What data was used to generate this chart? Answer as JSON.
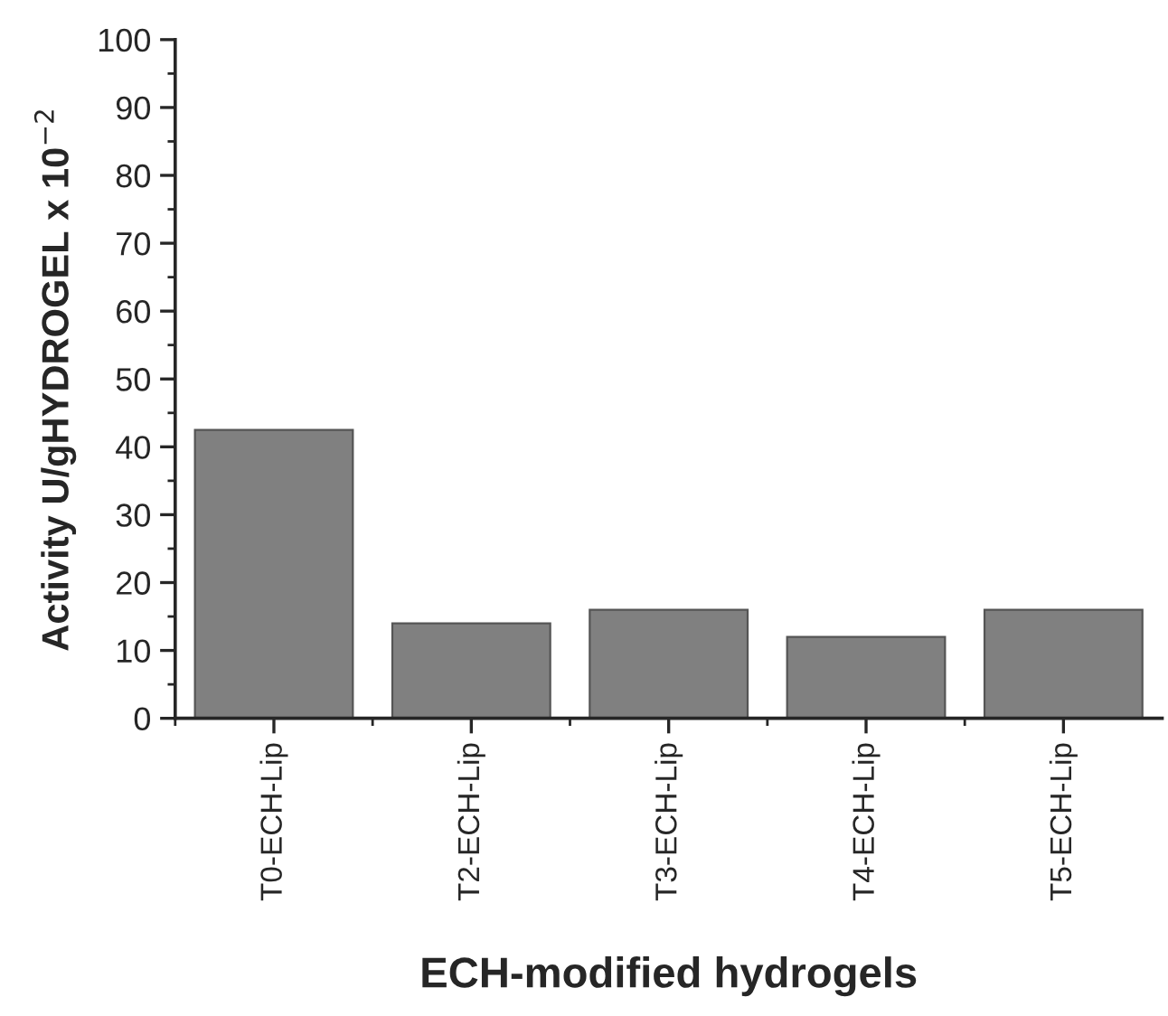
{
  "chart_data": {
    "type": "bar",
    "xlabel": "ECH-modified hydrogels",
    "ylabel": "Activity U/gHYDROGEL x 10$^{−2}$",
    "categories": [
      "T0-ECH-Lip",
      "T2-ECH-Lip",
      "T3-ECH-Lip",
      "T4-ECH-Lip",
      "T5-ECH-Lip"
    ],
    "values": [
      42.5,
      14,
      16,
      12,
      16
    ],
    "color": "#808080",
    "ylim": [
      0,
      100
    ],
    "yticks": [
      0,
      10,
      20,
      30,
      40,
      50,
      60,
      70,
      80,
      90,
      100
    ],
    "grid": false,
    "legend": false
  }
}
